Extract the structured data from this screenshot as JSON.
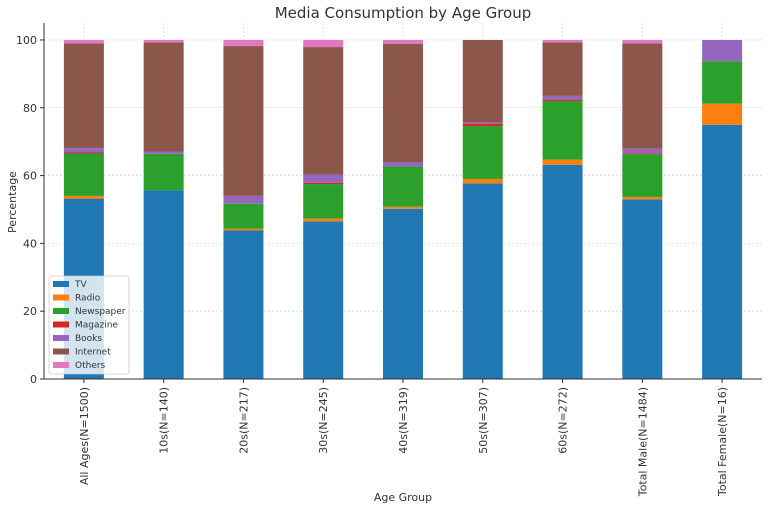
{
  "chart_data": {
    "type": "bar",
    "stacked": true,
    "title": "Media Consumption by Age Group",
    "xlabel": "Age Group",
    "ylabel": "Percentage",
    "ylim": [
      0,
      105
    ],
    "yticks": [
      0,
      20,
      40,
      60,
      80,
      100
    ],
    "grid": true,
    "legend_position": "bottom-left",
    "categories": [
      "All Ages(N=1500)",
      "10s(N=140)",
      "20s(N=217)",
      "30s(N=245)",
      "40s(N=319)",
      "50s(N=307)",
      "60s(N=272)",
      "Total Male(N=1484)",
      "Total Female(N=16)"
    ],
    "series": [
      {
        "name": "TV",
        "color": "#1f77b4",
        "values": [
          53.2,
          55.7,
          43.8,
          46.5,
          50.2,
          57.7,
          63.2,
          53.0,
          75.0
        ]
      },
      {
        "name": "Radio",
        "color": "#ff7f0e",
        "values": [
          0.8,
          0.0,
          0.5,
          0.8,
          0.6,
          1.3,
          1.5,
          0.7,
          6.2
        ]
      },
      {
        "name": "Newspaper",
        "color": "#2ca02c",
        "values": [
          12.5,
          10.7,
          7.4,
          10.2,
          11.9,
          15.6,
          17.3,
          12.6,
          12.5
        ]
      },
      {
        "name": "Magazine",
        "color": "#d62728",
        "values": [
          0.3,
          0.0,
          0.0,
          0.4,
          0.0,
          0.7,
          0.4,
          0.3,
          0.0
        ]
      },
      {
        "name": "Books",
        "color": "#9467bd",
        "values": [
          1.3,
          0.7,
          2.3,
          2.4,
          1.3,
          0.3,
          1.1,
          1.3,
          6.3
        ]
      },
      {
        "name": "Internet",
        "color": "#8c564b",
        "values": [
          30.9,
          32.2,
          44.2,
          37.6,
          34.8,
          24.4,
          15.8,
          31.1,
          0.0
        ]
      },
      {
        "name": "Others",
        "color": "#e377c2",
        "values": [
          1.0,
          0.7,
          1.8,
          2.1,
          1.2,
          0.0,
          0.7,
          1.0,
          0.0
        ]
      }
    ]
  }
}
